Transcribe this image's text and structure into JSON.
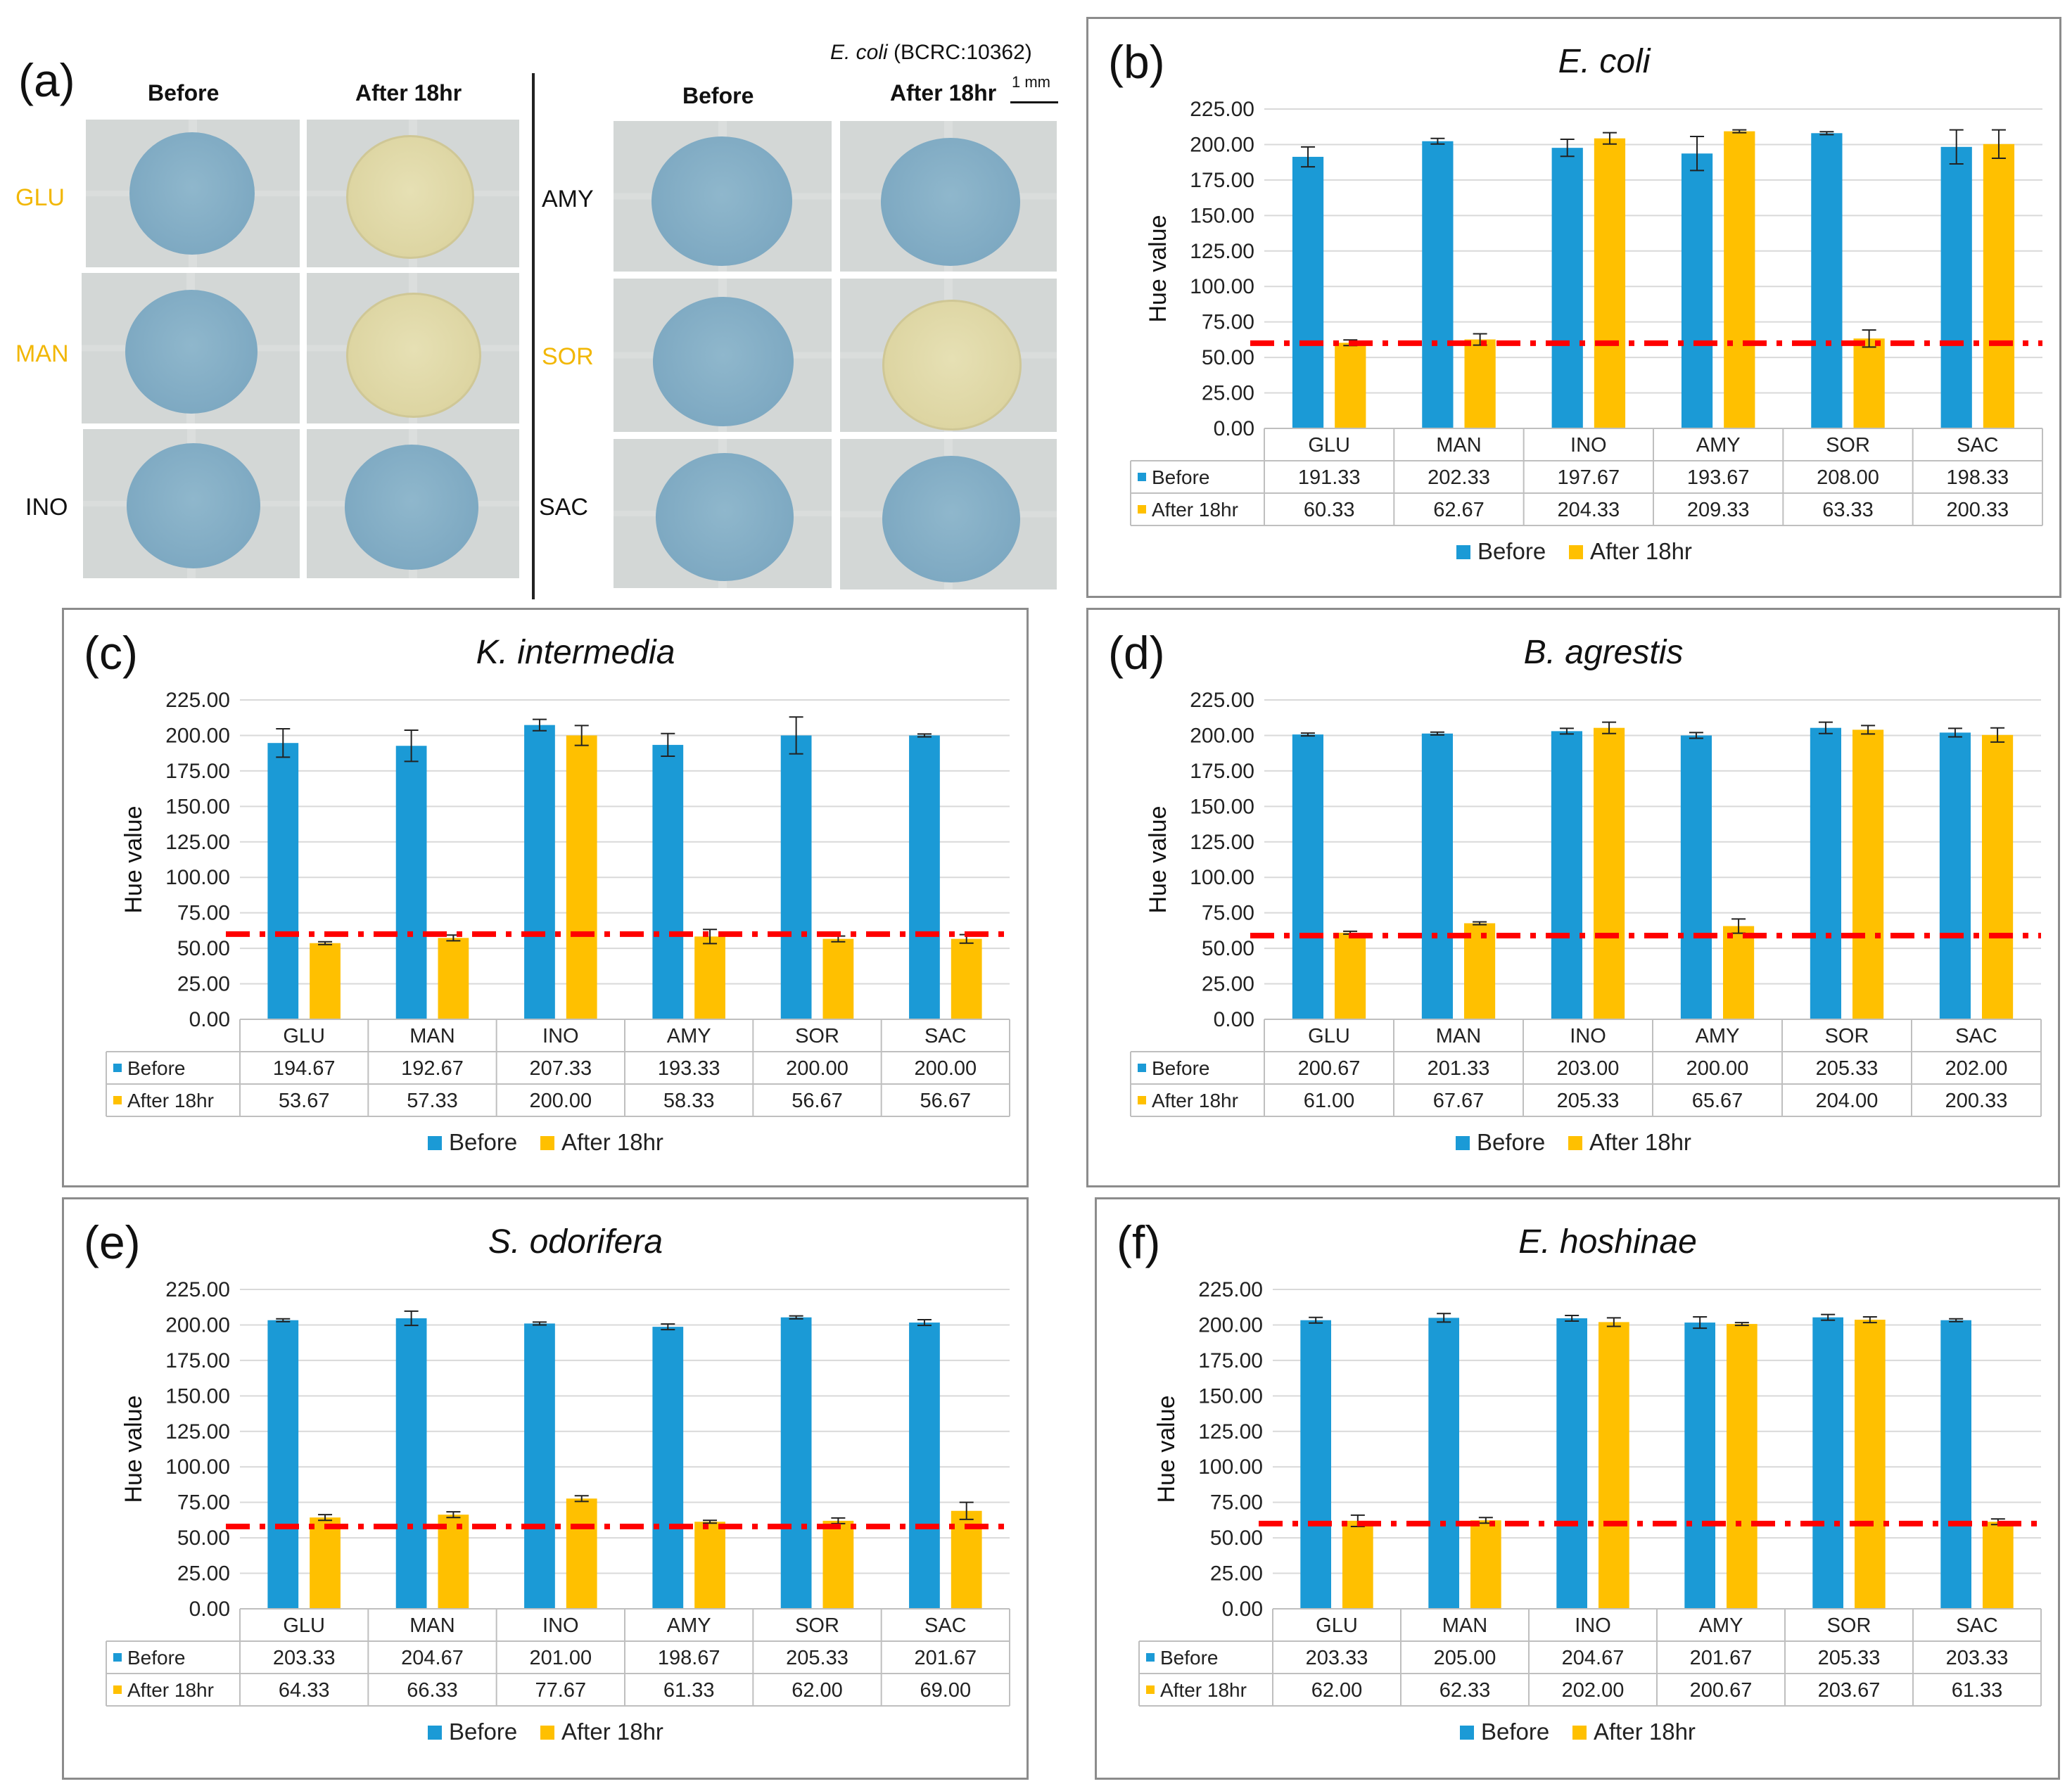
{
  "panel_a": {
    "letter": "(a)",
    "strain_prefix": "E. coli",
    "strain_suffix": " (BCRC:10362)",
    "scale": "1 mm",
    "left_headers": {
      "before": "Before",
      "after": "After 18hr"
    },
    "right_headers": {
      "before": "Before",
      "after": "After 18hr"
    },
    "left_rows": [
      {
        "label": "GLU",
        "positive": true,
        "before": "blue",
        "after": "yellow"
      },
      {
        "label": "MAN",
        "positive": true,
        "before": "blue",
        "after": "yellow"
      },
      {
        "label": "INO",
        "positive": false,
        "before": "blue",
        "after": "blue"
      }
    ],
    "right_rows": [
      {
        "label": "AMY",
        "positive": false,
        "before": "blue",
        "after": "blue"
      },
      {
        "label": "SOR",
        "positive": true,
        "before": "blue",
        "after": "yellow"
      },
      {
        "label": "SAC",
        "positive": false,
        "before": "blue",
        "after": "blue"
      }
    ],
    "colors": {
      "positive_label": "#f2b705",
      "blue_disk": "#7ea9c2",
      "yellow_disk": "#ddd5a2"
    }
  },
  "colors": {
    "before": "#1b9ad6",
    "after": "#ffc000",
    "threshold": "#ff0000",
    "grid": "#d9d9d9"
  },
  "chart_data": [
    {
      "letter": "(b)",
      "type": "bar",
      "title": "E. coli",
      "ylabel": "Hue value",
      "ylim": [
        0,
        225
      ],
      "yticks": [
        "0.00",
        "25.00",
        "50.00",
        "75.00",
        "100.00",
        "125.00",
        "150.00",
        "175.00",
        "200.00",
        "225.00"
      ],
      "threshold": 60,
      "categories": [
        "GLU",
        "MAN",
        "INO",
        "AMY",
        "SOR",
        "SAC"
      ],
      "series": [
        {
          "name": "Before",
          "values": [
            191.33,
            202.33,
            197.67,
            193.67,
            208.0,
            198.33
          ],
          "labels": [
            "191.33",
            "202.33",
            "197.67",
            "193.67",
            "208.00",
            "198.33"
          ],
          "errors": [
            7,
            2,
            6,
            12,
            1,
            12
          ]
        },
        {
          "name": "After 18hr",
          "values": [
            60.33,
            62.67,
            204.33,
            209.33,
            63.33,
            200.33
          ],
          "labels": [
            "60.33",
            "62.67",
            "204.33",
            "209.33",
            "63.33",
            "200.33"
          ],
          "errors": [
            2,
            4,
            4,
            1,
            6,
            10
          ]
        }
      ]
    },
    {
      "letter": "(c)",
      "type": "bar",
      "title": "K. intermedia",
      "ylabel": "Hue value",
      "ylim": [
        0,
        225
      ],
      "yticks": [
        "0.00",
        "25.00",
        "50.00",
        "75.00",
        "100.00",
        "125.00",
        "150.00",
        "175.00",
        "200.00",
        "225.00"
      ],
      "threshold": 60,
      "categories": [
        "GLU",
        "MAN",
        "INO",
        "AMY",
        "SOR",
        "SAC"
      ],
      "series": [
        {
          "name": "Before",
          "values": [
            194.67,
            192.67,
            207.33,
            193.33,
            200.0,
            200.0
          ],
          "labels": [
            "194.67",
            "192.67",
            "207.33",
            "193.33",
            "200.00",
            "200.00"
          ],
          "errors": [
            10,
            11,
            4,
            8,
            13,
            1
          ]
        },
        {
          "name": "After 18hr",
          "values": [
            53.67,
            57.33,
            200.0,
            58.33,
            56.67,
            56.67
          ],
          "labels": [
            "53.67",
            "57.33",
            "200.00",
            "58.33",
            "56.67",
            "56.67"
          ],
          "errors": [
            1,
            2,
            7,
            5,
            2,
            3
          ]
        }
      ]
    },
    {
      "letter": "(d)",
      "type": "bar",
      "title": "B. agrestis",
      "ylabel": "Hue value",
      "ylim": [
        0,
        225
      ],
      "yticks": [
        "0.00",
        "25.00",
        "50.00",
        "75.00",
        "100.00",
        "125.00",
        "150.00",
        "175.00",
        "200.00",
        "225.00"
      ],
      "threshold": 59,
      "categories": [
        "GLU",
        "MAN",
        "INO",
        "AMY",
        "SOR",
        "SAC"
      ],
      "series": [
        {
          "name": "Before",
          "values": [
            200.67,
            201.33,
            203.0,
            200.0,
            205.33,
            202.0
          ],
          "labels": [
            "200.67",
            "201.33",
            "203.00",
            "200.00",
            "205.33",
            "202.00"
          ],
          "errors": [
            1,
            1,
            2,
            2,
            4,
            3
          ]
        },
        {
          "name": "After 18hr",
          "values": [
            61.0,
            67.67,
            205.33,
            65.67,
            204.0,
            200.33
          ],
          "labels": [
            "61.00",
            "67.67",
            "205.33",
            "65.67",
            "204.00",
            "200.33"
          ],
          "errors": [
            1,
            1,
            4,
            5,
            3,
            5
          ]
        }
      ]
    },
    {
      "letter": "(e)",
      "type": "bar",
      "title": "S. odorifera",
      "ylabel": "Hue value",
      "ylim": [
        0,
        225
      ],
      "yticks": [
        "0.00",
        "25.00",
        "50.00",
        "75.00",
        "100.00",
        "125.00",
        "150.00",
        "175.00",
        "200.00",
        "225.00"
      ],
      "threshold": 58,
      "categories": [
        "GLU",
        "MAN",
        "INO",
        "AMY",
        "SOR",
        "SAC"
      ],
      "series": [
        {
          "name": "Before",
          "values": [
            203.33,
            204.67,
            201.0,
            198.67,
            205.33,
            201.67
          ],
          "labels": [
            "203.33",
            "204.67",
            "201.00",
            "198.67",
            "205.33",
            "201.67"
          ],
          "errors": [
            1,
            5,
            1,
            2,
            1,
            2
          ]
        },
        {
          "name": "After 18hr",
          "values": [
            64.33,
            66.33,
            77.67,
            61.33,
            62.0,
            69.0
          ],
          "labels": [
            "64.33",
            "66.33",
            "77.67",
            "61.33",
            "62.00",
            "69.00"
          ],
          "errors": [
            2,
            2,
            2,
            1,
            2,
            6
          ]
        }
      ]
    },
    {
      "letter": "(f)",
      "type": "bar",
      "title": "E. hoshinae",
      "ylabel": "Hue value",
      "ylim": [
        0,
        225
      ],
      "yticks": [
        "0.00",
        "25.00",
        "50.00",
        "75.00",
        "100.00",
        "125.00",
        "150.00",
        "175.00",
        "200.00",
        "225.00"
      ],
      "threshold": 60,
      "categories": [
        "GLU",
        "MAN",
        "INO",
        "AMY",
        "SOR",
        "SAC"
      ],
      "series": [
        {
          "name": "Before",
          "values": [
            203.33,
            205.0,
            204.67,
            201.67,
            205.33,
            203.33
          ],
          "labels": [
            "203.33",
            "205.00",
            "204.67",
            "201.67",
            "205.33",
            "203.33"
          ],
          "errors": [
            2,
            3,
            2,
            4,
            2,
            1
          ]
        },
        {
          "name": "After 18hr",
          "values": [
            62.0,
            62.33,
            202.0,
            200.67,
            203.67,
            61.33
          ],
          "labels": [
            "62.00",
            "62.33",
            "202.00",
            "200.67",
            "203.67",
            "61.33"
          ],
          "errors": [
            4,
            2,
            3,
            1,
            2,
            2
          ]
        }
      ]
    }
  ]
}
